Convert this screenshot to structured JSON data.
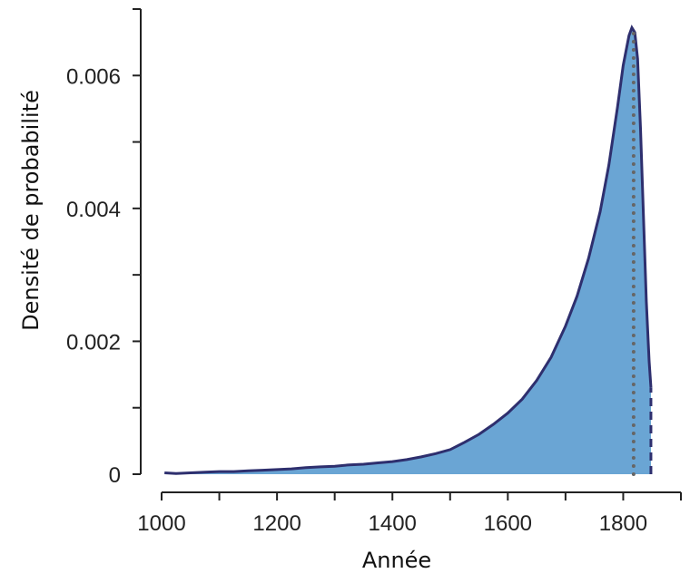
{
  "chart_data": {
    "type": "area",
    "title": "",
    "xlabel": "Année",
    "ylabel": "Densité de probabilité",
    "xlim": [
      1000,
      1900
    ],
    "ylim": [
      0,
      0.007
    ],
    "x_ticks": [
      1000,
      1100,
      1200,
      1300,
      1400,
      1500,
      1600,
      1700,
      1800,
      1900
    ],
    "x_tick_labels": [
      "1000",
      "1200",
      "1400",
      "1600",
      "1800"
    ],
    "x_tick_label_values": [
      1000,
      1200,
      1400,
      1600,
      1800
    ],
    "y_ticks": [
      0,
      0.001,
      0.002,
      0.003,
      0.004,
      0.005,
      0.006,
      0.007
    ],
    "y_tick_labels": [
      "0",
      "0.002",
      "0.004",
      "0.006"
    ],
    "y_tick_label_values": [
      0,
      0.002,
      0.004,
      0.006
    ],
    "grid": false,
    "colors": {
      "fill": "#6aa5d4",
      "line": "#2e2f6e",
      "marker": "#666666"
    },
    "series": [
      {
        "x": [
          1005,
          1025,
          1050,
          1075,
          1100,
          1125,
          1150,
          1175,
          1200,
          1225,
          1250,
          1275,
          1300,
          1325,
          1350,
          1375,
          1400,
          1425,
          1450,
          1475,
          1500,
          1525,
          1550,
          1575,
          1600,
          1625,
          1650,
          1675,
          1700,
          1720,
          1740,
          1760,
          1775,
          1790,
          1800,
          1810,
          1815,
          1820,
          1825,
          1830,
          1835,
          1840,
          1845,
          1848
        ],
        "y": [
          2e-05,
          1e-05,
          2e-05,
          3e-05,
          4e-05,
          4e-05,
          5e-05,
          6e-05,
          7e-05,
          8e-05,
          0.0001,
          0.00011,
          0.00012,
          0.00014,
          0.00015,
          0.00017,
          0.00019,
          0.00022,
          0.00026,
          0.00031,
          0.00037,
          0.00048,
          0.0006,
          0.00075,
          0.00092,
          0.00113,
          0.00141,
          0.00176,
          0.00223,
          0.00268,
          0.00325,
          0.00395,
          0.00465,
          0.00552,
          0.00615,
          0.0066,
          0.00672,
          0.00665,
          0.00625,
          0.0052,
          0.0039,
          0.0026,
          0.0017,
          0.0013
        ]
      }
    ],
    "markers": [
      {
        "type": "vline",
        "x": 1818,
        "style": "dotted"
      },
      {
        "type": "vline",
        "x": 1848,
        "style": "dashed"
      }
    ]
  }
}
